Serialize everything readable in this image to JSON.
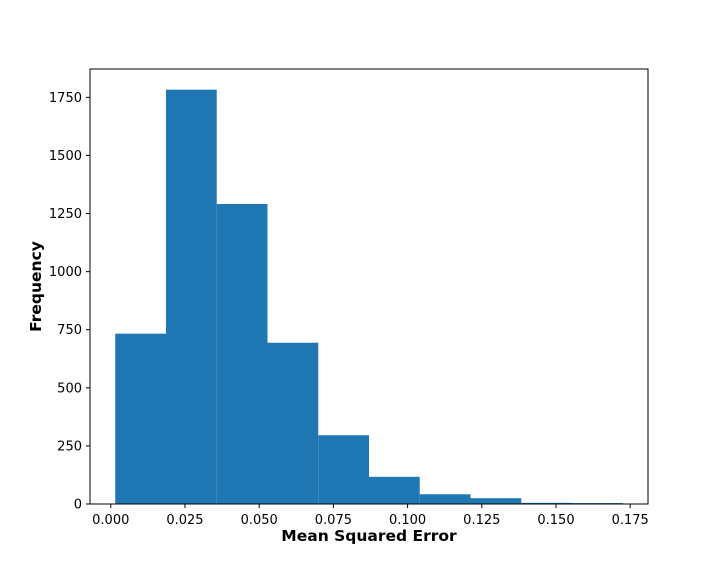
{
  "chart_data": {
    "type": "bar",
    "title": "",
    "xlabel": "Mean Squared Error",
    "ylabel": "Frequency",
    "bar_color": "#1f77b4",
    "bin_edges": [
      0.0015,
      0.0186,
      0.0357,
      0.0528,
      0.0699,
      0.087,
      0.1041,
      0.1212,
      0.1383,
      0.1554,
      0.1725
    ],
    "values": [
      733,
      1783,
      1291,
      694,
      296,
      117,
      42,
      25,
      5,
      4
    ],
    "xlim": [
      -0.007,
      0.181
    ],
    "ylim": [
      0,
      1872
    ],
    "xticks": [
      0.0,
      0.025,
      0.05,
      0.075,
      0.1,
      0.125,
      0.15,
      0.175
    ],
    "xtick_labels": [
      "0.000",
      "0.025",
      "0.050",
      "0.075",
      "0.100",
      "0.125",
      "0.150",
      "0.175"
    ],
    "yticks": [
      0,
      250,
      500,
      750,
      1000,
      1250,
      1500,
      1750
    ],
    "ytick_labels": [
      "0",
      "250",
      "500",
      "750",
      "1000",
      "1250",
      "1500",
      "1750"
    ],
    "grid": false,
    "legend": false
  }
}
